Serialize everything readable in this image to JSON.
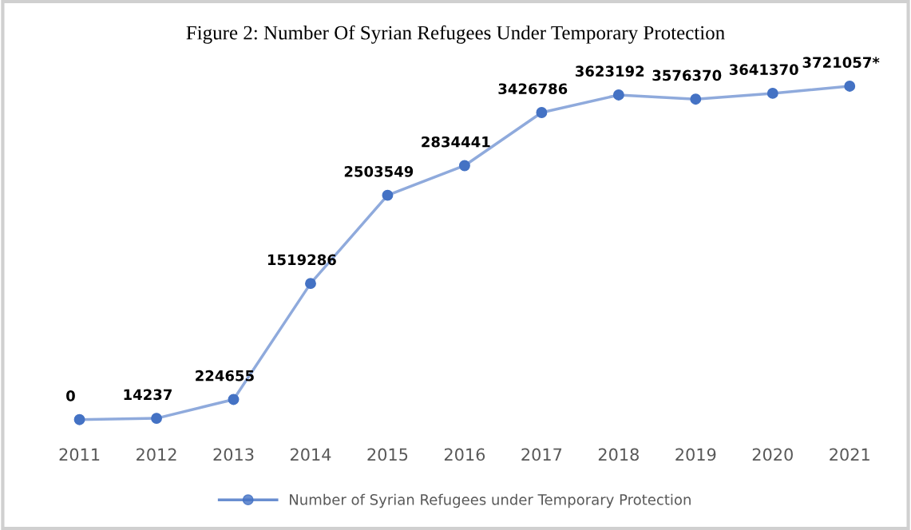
{
  "chart_data": {
    "type": "line",
    "title": "Figure 2: Number Of Syrian Refugees Under Temporary Protection",
    "categories": [
      "2011",
      "2012",
      "2013",
      "2014",
      "2015",
      "2016",
      "2017",
      "2018",
      "2019",
      "2020",
      "2021"
    ],
    "series": [
      {
        "name": "Number of Syrian Refugees under Temporary Protection",
        "color": "#4472c4",
        "values": [
          0,
          14237,
          224655,
          1519286,
          2503549,
          2834441,
          3426786,
          3623192,
          3576370,
          3641370,
          3721057
        ],
        "value_labels": [
          "0",
          "14237",
          "224655",
          "1519286",
          "2503549",
          "2834441",
          "3426786",
          "3623192",
          "3576370",
          "3641370",
          "3721057*"
        ]
      }
    ],
    "marker": "circle",
    "line_style": "solid",
    "grid": false,
    "legend": "bottom"
  }
}
